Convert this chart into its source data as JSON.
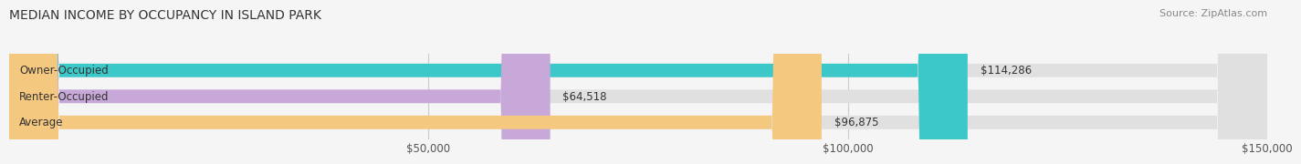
{
  "title": "MEDIAN INCOME BY OCCUPANCY IN ISLAND PARK",
  "source": "Source: ZipAtlas.com",
  "categories": [
    "Owner-Occupied",
    "Renter-Occupied",
    "Average"
  ],
  "values": [
    114286,
    64518,
    96875
  ],
  "bar_colors": [
    "#3cc8c8",
    "#c8a8d8",
    "#f5c880"
  ],
  "value_labels": [
    "$114,286",
    "$64,518",
    "$96,875"
  ],
  "xlim": [
    0,
    150000
  ],
  "xticks": [
    50000,
    100000,
    150000
  ],
  "xtick_labels": [
    "$50,000",
    "$100,000",
    "$150,000"
  ],
  "title_fontsize": 10,
  "source_fontsize": 8,
  "label_fontsize": 8.5,
  "bar_height": 0.52,
  "background_color": "#f5f5f5",
  "bg_bar_color": "#e0e0e0"
}
